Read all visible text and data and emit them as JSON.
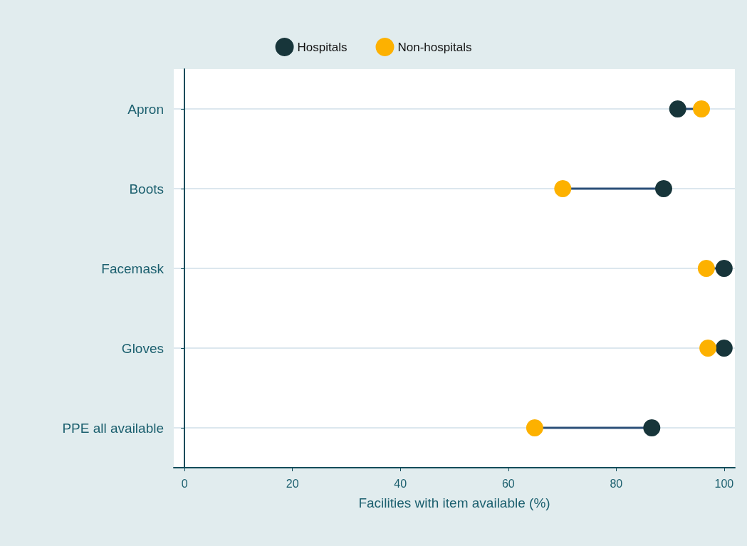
{
  "chart_data": {
    "type": "scatter",
    "orientation": "horizontal",
    "xlabel": "Facilities with item available (%)",
    "categories": [
      "Apron",
      "Boots",
      "Facemask",
      "Gloves",
      "PPE all available"
    ],
    "series": [
      {
        "name": "Hospitals",
        "color": "#17353a",
        "values": [
          91.4,
          88.8,
          100,
          100,
          86.6
        ]
      },
      {
        "name": "Non-hospitals",
        "color": "#fdb100",
        "values": [
          95.8,
          70.1,
          96.7,
          97.0,
          64.9
        ]
      }
    ],
    "xlim": [
      -2,
      102
    ],
    "xticks": [
      0,
      20,
      40,
      60,
      80,
      100
    ],
    "grid": "y",
    "legend": "top",
    "marker": "circle"
  }
}
